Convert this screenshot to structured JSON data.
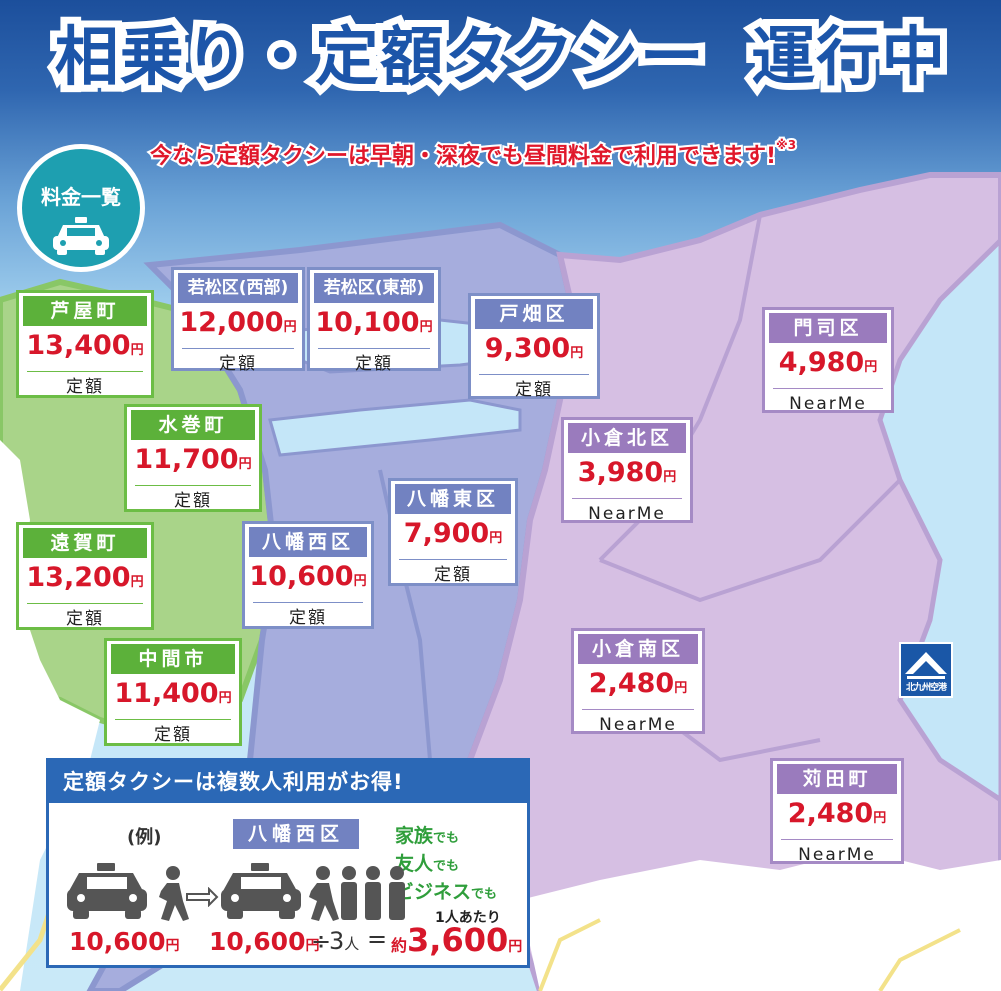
{
  "title": {
    "line1": "相乗り・定額タクシー",
    "line2": "運行中"
  },
  "subtitle": {
    "text": "今なら定額タクシーは早朝・深夜でも昼間料金で利用できます!",
    "note": "※3"
  },
  "badge": {
    "label": "料金一覧",
    "icon": "taxi-icon"
  },
  "yen_unit": "円",
  "colors": {
    "green": "#5cb13a",
    "blue": "#7282c1",
    "purple": "#9a7bbd",
    "price": "#d7172a",
    "promo_header": "#2b68b6"
  },
  "areas": [
    {
      "id": "ashiya",
      "name": "芦屋町",
      "price": "13,400",
      "kind": "定額",
      "group": "g"
    },
    {
      "id": "mizumaki",
      "name": "水巻町",
      "price": "11,700",
      "kind": "定額",
      "group": "g"
    },
    {
      "id": "onga",
      "name": "遠賀町",
      "price": "13,200",
      "kind": "定額",
      "group": "g"
    },
    {
      "id": "nakama",
      "name": "中間市",
      "price": "11,400",
      "kind": "定額",
      "group": "g"
    },
    {
      "id": "wakamatsu-west",
      "name": "若松区(西部)",
      "price": "12,000",
      "kind": "定額",
      "group": "b"
    },
    {
      "id": "wakamatsu-east",
      "name": "若松区(東部)",
      "price": "10,100",
      "kind": "定額",
      "group": "b"
    },
    {
      "id": "tobata",
      "name": "戸畑区",
      "price": "9,300",
      "kind": "定額",
      "group": "b"
    },
    {
      "id": "yahatahigashi",
      "name": "八幡東区",
      "price": "7,900",
      "kind": "定額",
      "group": "b"
    },
    {
      "id": "yahatanishi",
      "name": "八幡西区",
      "price": "10,600",
      "kind": "定額",
      "group": "b"
    },
    {
      "id": "moji",
      "name": "門司区",
      "price": "4,980",
      "kind": "NearMe",
      "group": "p"
    },
    {
      "id": "kokurakita",
      "name": "小倉北区",
      "price": "3,980",
      "kind": "NearMe",
      "group": "p"
    },
    {
      "id": "kokuraminami",
      "name": "小倉南区",
      "price": "2,480",
      "kind": "NearMe",
      "group": "p"
    },
    {
      "id": "kanda",
      "name": "苅田町",
      "price": "2,480",
      "kind": "NearMe",
      "group": "p"
    }
  ],
  "airport": {
    "label": "北九州空港",
    "icon": "airport-logo-icon"
  },
  "promo": {
    "header": "定額タクシーは複数人利用がお得!",
    "example_label": "(例)",
    "example_ward": "八幡西区",
    "groups": [
      {
        "text": "家族",
        "suffix": "でも"
      },
      {
        "text": "友人",
        "suffix": "でも"
      },
      {
        "text": "ビジネス",
        "suffix": "でも"
      }
    ],
    "per_person": "1人あたり",
    "single_price": "10,600",
    "shared_price": "10,600",
    "divide": "÷",
    "people": "3",
    "people_unit": "人",
    "equals": "=",
    "approx": "約",
    "result": "3,600",
    "icons": [
      "taxi-icon",
      "walking-person-icon",
      "arrow-right-icon",
      "group-people-icon"
    ]
  }
}
